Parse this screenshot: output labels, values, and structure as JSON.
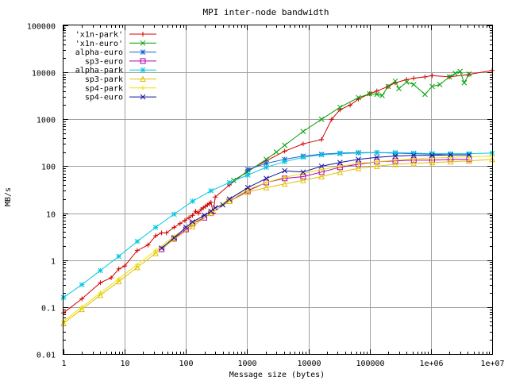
{
  "chart_data": {
    "type": "line",
    "title": "MPI inter-node bandwidth",
    "xlabel": "Message size (bytes)",
    "ylabel": "MB/s",
    "x_scale": "log",
    "y_scale": "log",
    "xlim": [
      1,
      10000000
    ],
    "ylim": [
      0.01,
      100000
    ],
    "grid": true,
    "legend_position": "top-left",
    "x_ticks": [
      {
        "value": 1,
        "label": "1"
      },
      {
        "value": 10,
        "label": "10"
      },
      {
        "value": 100,
        "label": "100"
      },
      {
        "value": 1000,
        "label": "1000"
      },
      {
        "value": 10000,
        "label": "10000"
      },
      {
        "value": 100000,
        "label": "100000"
      },
      {
        "value": 1000000,
        "label": "1e+06"
      },
      {
        "value": 10000000,
        "label": "1e+07"
      }
    ],
    "y_ticks": [
      {
        "value": 0.01,
        "label": "0.01"
      },
      {
        "value": 0.1,
        "label": "0.1"
      },
      {
        "value": 1,
        "label": "1"
      },
      {
        "value": 10,
        "label": "10"
      },
      {
        "value": 100,
        "label": "100"
      },
      {
        "value": 1000,
        "label": "1000"
      },
      {
        "value": 10000,
        "label": "10000"
      },
      {
        "value": 100000,
        "label": "100000"
      }
    ],
    "series": [
      {
        "name": "'x1n-park'",
        "color": "#d40000",
        "marker": "plus",
        "x": [
          1,
          2,
          4,
          6,
          8,
          10,
          16,
          24,
          32,
          40,
          48,
          64,
          80,
          96,
          112,
          128,
          144,
          160,
          176,
          192,
          208,
          224,
          240,
          256,
          280,
          300,
          512,
          1024,
          2048,
          4096,
          8192,
          16384,
          24000,
          32768,
          48000,
          65536,
          100000,
          131072,
          200000,
          262144,
          400000,
          524288,
          800000,
          1048576,
          2000000,
          4194304,
          10000000
        ],
        "y": [
          0.075,
          0.15,
          0.33,
          0.42,
          0.65,
          0.75,
          1.6,
          2.1,
          3.3,
          3.8,
          3.8,
          5,
          6,
          7,
          8,
          9,
          11,
          10,
          12,
          13,
          14,
          15,
          16,
          17,
          10,
          22,
          40,
          80,
          130,
          210,
          300,
          370,
          1000,
          1600,
          2000,
          2700,
          3500,
          4000,
          5000,
          6000,
          7000,
          7500,
          8000,
          8500,
          8000,
          9000,
          11000
        ]
      },
      {
        "name": "'x1n-euro'",
        "color": "#00a000",
        "marker": "cross",
        "x": [
          600,
          1000,
          2048,
          3000,
          4096,
          8192,
          16384,
          32768,
          65536,
          100000,
          131072,
          160000,
          200000,
          262144,
          300000,
          400000,
          524288,
          800000,
          1048576,
          1400000,
          2000000,
          2500000,
          3000000,
          3500000,
          4194304
        ],
        "y": [
          50,
          75,
          140,
          200,
          280,
          550,
          1000,
          1800,
          2900,
          3500,
          3400,
          3200,
          5000,
          6500,
          4500,
          6200,
          5500,
          3400,
          5000,
          5500,
          8000,
          9500,
          10500,
          6000,
          9200
        ]
      },
      {
        "name": "alpha-euro",
        "color": "#1a5fd6",
        "marker": "star",
        "x": [
          1024,
          2048,
          4096,
          8192,
          16384,
          32768,
          65536,
          131072,
          262144,
          524288,
          1048576,
          2097152,
          4194304
        ],
        "y": [
          85,
          115,
          140,
          165,
          180,
          190,
          195,
          195,
          190,
          185,
          180,
          175,
          175
        ]
      },
      {
        "name": "sp3-euro",
        "color": "#b000b0",
        "marker": "square",
        "x": [
          40,
          64,
          100,
          128,
          200,
          256,
          512,
          1024,
          2048,
          4096,
          8192,
          16384,
          32768,
          65536,
          131072,
          262144,
          524288,
          1048576,
          2097152,
          4194304
        ],
        "y": [
          1.7,
          2.9,
          4.5,
          6,
          8,
          10,
          18,
          30,
          45,
          55,
          60,
          75,
          95,
          110,
          125,
          130,
          135,
          135,
          140,
          140
        ]
      },
      {
        "name": "alpha-park",
        "color": "#00c8e0",
        "marker": "star",
        "x": [
          1,
          2,
          4,
          8,
          16,
          32,
          64,
          128,
          256,
          512,
          1024,
          2048,
          4096,
          8192,
          16384,
          32768,
          65536,
          131072,
          262144,
          524288,
          1048576,
          2097152,
          4194304,
          10000000
        ],
        "y": [
          0.16,
          0.3,
          0.6,
          1.2,
          2.5,
          5,
          9.5,
          18,
          30,
          45,
          65,
          95,
          125,
          155,
          175,
          185,
          190,
          195,
          195,
          190,
          185,
          185,
          185,
          190
        ]
      },
      {
        "name": "sp3-park",
        "color": "#e0c000",
        "marker": "triangle",
        "x": [
          1,
          2,
          4,
          8,
          16,
          32,
          64,
          128,
          256,
          512,
          1024,
          2048,
          4096,
          8192,
          16384,
          32768,
          65536,
          131072,
          262144,
          524288,
          1048576,
          2097152,
          4194304,
          10000000
        ],
        "y": [
          0.045,
          0.09,
          0.18,
          0.35,
          0.7,
          1.4,
          2.8,
          5.2,
          10,
          18,
          28,
          35,
          42,
          50,
          60,
          75,
          90,
          100,
          110,
          115,
          120,
          125,
          130,
          140
        ]
      },
      {
        "name": "sp4-park",
        "color": "#f0e000",
        "marker": "plus",
        "x": [
          1,
          2,
          4,
          8,
          16,
          32,
          64,
          128,
          256,
          512,
          1024,
          2048,
          4096,
          8192,
          16384,
          32768,
          65536,
          131072,
          262144,
          524288,
          1048576,
          2097152,
          4194304,
          10000000
        ],
        "y": [
          0.05,
          0.1,
          0.2,
          0.4,
          0.8,
          1.6,
          3.2,
          6,
          11,
          20,
          32,
          45,
          58,
          70,
          85,
          100,
          115,
          125,
          135,
          145,
          150,
          155,
          160,
          165
        ]
      },
      {
        "name": "sp4-euro",
        "color": "#1010a0",
        "marker": "cross",
        "x": [
          40,
          64,
          100,
          128,
          200,
          256,
          300,
          400,
          512,
          1024,
          2048,
          4096,
          8192,
          16384,
          32768,
          65536,
          131072,
          262144,
          524288,
          1048576,
          2097152,
          4194304
        ],
        "y": [
          1.8,
          3,
          5,
          6.5,
          9,
          11,
          13,
          15,
          20,
          35,
          55,
          80,
          75,
          100,
          120,
          140,
          155,
          165,
          170,
          170,
          175,
          175
        ]
      }
    ]
  }
}
